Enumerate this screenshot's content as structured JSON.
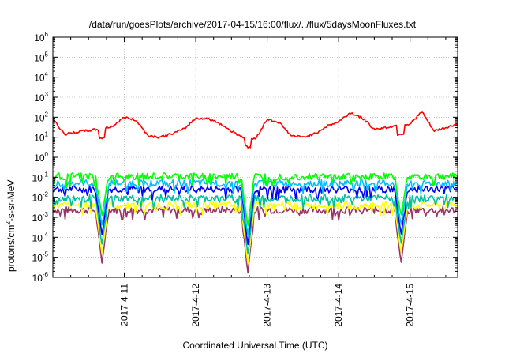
{
  "chart_data": {
    "type": "line",
    "title": "/data/run/goesPlots/archive/2017-04-15/16:00/flux/../flux/5daysMoonFluxes.txt",
    "xlabel": "Coordinated Universal Time (UTC)",
    "ylabel": {
      "pre": "protons/cm",
      "sup": "2",
      "post": "-s-sr-MeV"
    },
    "x_range": [
      "2017-04-10 00:00",
      "2017-04-15 16:00"
    ],
    "x_ticks": [
      "2017-4-11",
      "2017-4-12",
      "2017-4-13",
      "2017-4-14",
      "2017-4-15"
    ],
    "y_scale": "log",
    "ylim": [
      1e-06,
      1000000.0
    ],
    "y_ticks": [
      {
        "base": "10",
        "exp": "-6",
        "value": 1e-06
      },
      {
        "base": "10",
        "exp": "-5",
        "value": 1e-05
      },
      {
        "base": "10",
        "exp": "-4",
        "value": 0.0001
      },
      {
        "base": "10",
        "exp": "-3",
        "value": 0.001
      },
      {
        "base": "10",
        "exp": "-2",
        "value": 0.01
      },
      {
        "base": "10",
        "exp": "-1",
        "value": 0.1
      },
      {
        "base": "10",
        "exp": "0",
        "value": 1
      },
      {
        "base": "10",
        "exp": "1",
        "value": 10
      },
      {
        "base": "10",
        "exp": "2",
        "value": 100
      },
      {
        "base": "10",
        "exp": "3",
        "value": 1000
      },
      {
        "base": "10",
        "exp": "4",
        "value": 10000
      },
      {
        "base": "10",
        "exp": "5",
        "value": 100000
      },
      {
        "base": "10",
        "exp": "6",
        "value": 1000000
      }
    ],
    "grid": true,
    "dips": [
      {
        "x": "2017-04-10 16:30",
        "min": 5e-06
      },
      {
        "x": "2017-04-12 17:30",
        "min": 1.5e-06
      },
      {
        "x": "2017-04-14 21:00",
        "min": 5e-06
      }
    ],
    "series": [
      {
        "color": "#ff0000",
        "x": [
          "2017-04-10 00:00",
          "2017-04-10 04:00",
          "2017-04-10 08:00",
          "2017-04-10 12:00",
          "2017-04-10 16:00",
          "2017-04-10 20:00",
          "2017-04-11 00:00",
          "2017-04-11 04:00",
          "2017-04-11 08:00",
          "2017-04-11 12:00",
          "2017-04-11 16:00",
          "2017-04-11 20:00",
          "2017-04-12 00:00",
          "2017-04-12 04:00",
          "2017-04-12 08:00",
          "2017-04-12 12:00",
          "2017-04-12 16:00",
          "2017-04-12 20:00",
          "2017-04-13 00:00",
          "2017-04-13 04:00",
          "2017-04-13 08:00",
          "2017-04-13 12:00",
          "2017-04-13 16:00",
          "2017-04-13 20:00",
          "2017-04-14 00:00",
          "2017-04-14 04:00",
          "2017-04-14 08:00",
          "2017-04-14 12:00",
          "2017-04-14 16:00",
          "2017-04-14 20:00",
          "2017-04-15 00:00",
          "2017-04-15 04:00",
          "2017-04-15 08:00",
          "2017-04-15 12:00",
          "2017-04-15 16:00"
        ],
        "values": [
          80,
          14,
          18,
          22,
          25,
          35,
          100,
          70,
          12,
          10,
          15,
          25,
          90,
          85,
          50,
          20,
          10,
          8,
          80,
          55,
          12,
          10,
          15,
          35,
          60,
          170,
          90,
          25,
          30,
          40,
          45,
          190,
          20,
          30,
          45
        ]
      },
      {
        "color": "#00ff00",
        "base": 0.11
      },
      {
        "color": "#00bfff",
        "base": 0.05
      },
      {
        "color": "#0000ff",
        "base": 0.025
      },
      {
        "color": "#00c0a0",
        "base": 0.009
      },
      {
        "color": "#ffff00",
        "base": 0.004
      },
      {
        "color": "#993366",
        "base": 0.0023
      }
    ]
  }
}
